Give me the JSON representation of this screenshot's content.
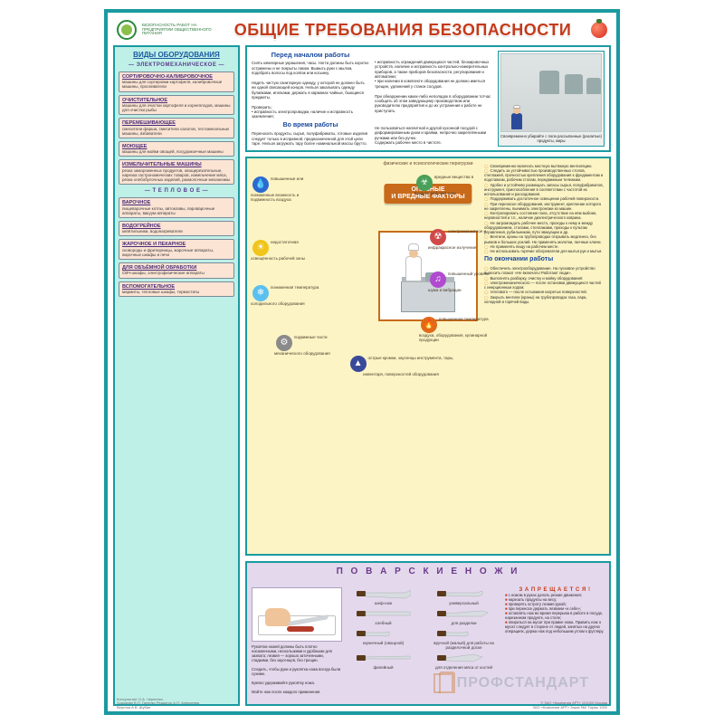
{
  "header": {
    "logo_text": "БЕЗОПАСНОСТЬ РАБОТ НА ПРЕДПРИЯТИИ ОБЩЕСТВЕННОГО ПИТАНИЯ",
    "title": "ОБЩИЕ ТРЕБОВАНИЯ БЕЗОПАСНОСТИ"
  },
  "colors": {
    "frame": "#1a9aa0",
    "title": "#c43a1a",
    "sidebar_bg": "#bff0e8",
    "card_bg": "#fce4d4",
    "hazards_bg": "#fcf4c4",
    "hazards_accent": "#c86a1a",
    "knives_bg": "#e4d8ec",
    "link_blue": "#1a4aa0"
  },
  "sidebar": {
    "title": "ВИДЫ ОБОРУДОВАНИЯ",
    "group1": "— ЭЛЕКТРОМЕХАНИЧЕСКОЕ —",
    "group2": "— Т Е П Л О В О Е —",
    "items": [
      {
        "name": "СОРТИРОВОЧНО-КАЛИБРОВОЧНОЕ",
        "desc": "машины для сортировки картофеля, калибровочные машины, просеиватели"
      },
      {
        "name": "ОЧИСТИТЕЛЬНОЕ",
        "desc": "машины для очистки картофеля и корнеплодов, машины для очистки рыбы"
      },
      {
        "name": "ПЕРЕМЕШИВАЮЩЕЕ",
        "desc": "смесители фарша, смесители салатов, тестомесильные машины, взбиватели"
      },
      {
        "name": "МОЮЩЕЕ",
        "desc": "машины для мойки овощей, посудомоечные машины"
      },
      {
        "name": "ИЗМЕЛЬЧИТЕЛЬНЫЕ МАШИНЫ",
        "desc": "резка замороженных продуктов, овощерезательные, нарезка гастрономических товаров, измельчение мяса, резка хлебобулочных изделий, размолочные механизмы"
      },
      {
        "name": "ВАРОЧНОЕ",
        "desc": "пищеварочные котлы, автоклавы, пароварочные аппараты, вакуум-аппараты"
      },
      {
        "name": "ВОДОГРЕЙНОЕ",
        "desc": "кипятильники, водонагреватели"
      },
      {
        "name": "ЖАРОЧНОЕ И ПЕКАРНОЕ",
        "desc": "сковороды и фритюрницы, жарочные аппараты, жарочные шкафы и печи"
      },
      {
        "name": "ДЛЯ ОБЪЁМНОЙ ОБРАБОТКИ",
        "desc": "СВЧ-шкафы, электрофизические аппараты"
      },
      {
        "name": "ВСПОМОГАТЕЛЬНОЕ",
        "desc": "мармиты, тепловые шкафы, термостаты"
      }
    ]
  },
  "pretext": {
    "h_before": "Перед началом работы",
    "h_during": "Во время работы",
    "col1": "Снять ювелирные украшения, часы. Ногти должны быть коротко острижены и не покрыты лаком. Вымыть руки с мылом, подобрать волосы под колпак или косынку.\n\nНадеть чистую санитарную одежду, у которой не должно быть ни одной свисающей концов. Нельзя закалывать одежду булавками, иголками, держать в карманах чайные, бьющиеся предметы.\n\nПроверить:\n• исправность электропроводки, наличие и исправность заземления;",
    "col2": "• исправность ограждений движущихся частей, блокировочных устройств, наличие и исправность контрольно-измерительных приборов, а также приборов безопасности, регулирования и автоматики;\n• при наличии в комплекте оборудования не должно иметься трещин, удлинений у станок сосудов.\n\nПри обнаружении каких-либо неполадок в оборудовании тотчас сообщить об этом заведующему производством или руководителю предприятия и до их устранения к работе не приступать.",
    "during1": "Переносить продукты, сырьё, полуфабрикаты, готовые изделия следует только в исправной, предназначенной для этой цели таре. Нельзя загружать тару более номинальной массы брутто.",
    "during2": "Не пользоваться наплитной и другой кухонной посудой с деформированным дном и краями, непрочно закреплёнными ручками или без ручек.\nСодержать рабочее место в чистоте.",
    "illus_caption": "Своевременно убирайте с пола рассыпанные (разлитые) продукты, жиры"
  },
  "hazards": {
    "top_label": "физические и психологические перегрузки",
    "title_l1": "ОПАСНЫЕ",
    "title_l2": "И ВРЕДНЫЕ ФАКТОРЫ",
    "items": [
      {
        "label": "повышенные или пониженные влажность и подвижность воздуха",
        "icon": "💧",
        "bg": "#2a6ad0",
        "pos": "l1"
      },
      {
        "label": "недостаточная освещённость рабочей зоны",
        "icon": "☀",
        "bg": "#f0c41a",
        "pos": "l2"
      },
      {
        "label": "пониженная температура холодильного оборудования",
        "icon": "❄",
        "bg": "#5ac0f0",
        "pos": "l3"
      },
      {
        "label": "подвижные части механического оборудования",
        "icon": "⚙",
        "bg": "#8a8a8a",
        "pos": "b1"
      },
      {
        "label": "острые кромки, заусенцы инструмента, тары, инвентаря, поверхностей оборудования",
        "icon": "▲",
        "bg": "#3a4a9a",
        "pos": "b2"
      },
      {
        "label": "повышенная температура воздуха, оборудования, кулинарной продукции",
        "icon": "🔥",
        "bg": "#e06a1a",
        "pos": "r3"
      },
      {
        "label": "повышенный уровень шума и вибрации",
        "icon": "♫",
        "bg": "#b04ad0",
        "pos": "r2"
      },
      {
        "label": "электромагнитное и инфракрасное излучение",
        "icon": "☢",
        "bg": "#d04a4a",
        "pos": "r1"
      },
      {
        "label": "вредные вещества в воздухе рабочей зоны",
        "icon": "☣",
        "bg": "#4aa05a",
        "pos": "t1"
      }
    ],
    "rules_title": "По окончании работы",
    "rules": [
      "Своевременно включать местную вытяжную вентиляцию.",
      "Следить за устойчивостью производственных столов, стеллажей, прочностью крепления оборудования к фундаментам и подставкам, рабочим столам, передвижным тележкам.",
      "Удобно и устойчиво размещать запасы сырья, полуфабрикатов, инструмент, приспособления в соответствии с частотой их использования и расходования.",
      "Поддерживать достаточное освещение рабочей поверхности.",
      "При переноске оборудования, инструмент, крепление которого не закреплены, вынимать электроножи из машин.",
      "Контролировать состояние пола, отсутствие на нём выбоин, неровностей и т.п., наличие диэлектрического коврика.",
      "Не загромождать рабочее место, проходы к нему и между оборудованием, столами, стеллажами, проходы к пультам управления, рубильникам, пути эвакуации и др.",
      "Вентили, краны на трубопроводах открывать медленно, без рывков и больших усилий. Не применять молотки, гаечные ключи.",
      "Не применять пищу на рабочем месте.",
      "Не использовать горячие обогреватели для мытья рук и мытья.",
      "Обеспечить электрооборудование. На пусковое устройство вывесить плакат «Не включать! Работают люди».",
      "Выполнять разборку, очистку и мойку оборудования:",
      "электромеханического — после остановки движущихся частей с инерционным ходом;",
      "теплового — после остывания нагретых поверхностей.",
      "Закрыть вентили (краны) на трубопроводах газа, пара, холодной и горячей воды."
    ]
  },
  "knives": {
    "title": "П О В А Р С К И Е   Н О Ж И",
    "left_text": "Рукоятки ножей должны быть плотно насаженными, нескользкими и удобными для захвата; лезвия — хорошо заточенными, гладкими, без заусенцев, без трещин.\n\nСледить, чтобы руки и рукоятка ножа всегда были сухими.\n\nКрепко удерживайте рукоятку ножа.\n\nМойте нож после каждого применения.",
    "list": [
      "шеф-нож",
      "универсальный",
      "хлебный",
      "для разделки",
      "корнечный (овощной)",
      "вручной (малый) для работы на разделочной доске",
      "филейный",
      "для отделения мяса от костей"
    ],
    "forbid_title": "З А П Р Е Щ А Е Т С Я !",
    "forbid": [
      "с ножом в руках делать резкие движения;",
      "нарезать продукты на весу;",
      "проверять остроту лезвия рукой;",
      "при переносе держать лезвием «к себе»;",
      "оставлять нож во время перерыва в работе в посуде, нарезанном продукте, на столе;",
      "опираться на мусат при правке ножа. Править нож о мусат следует в стороне от людей, занятых на других операциях, держа нож под небольшим углом к футляру."
    ]
  },
  "credits": {
    "left": "Консультант О.А. Черненко\nХудожник В.П. Галенко   Редактор А.П. Алексеева\nВерстка А.В. Шубин",
    "right": "© ЗАО «Компания АРТ» 101000 Москва\nЗАО «Компания АРТ»   Заказ №0   Тираж 1000"
  },
  "watermark": "ПРОФСТАНДАРТ"
}
